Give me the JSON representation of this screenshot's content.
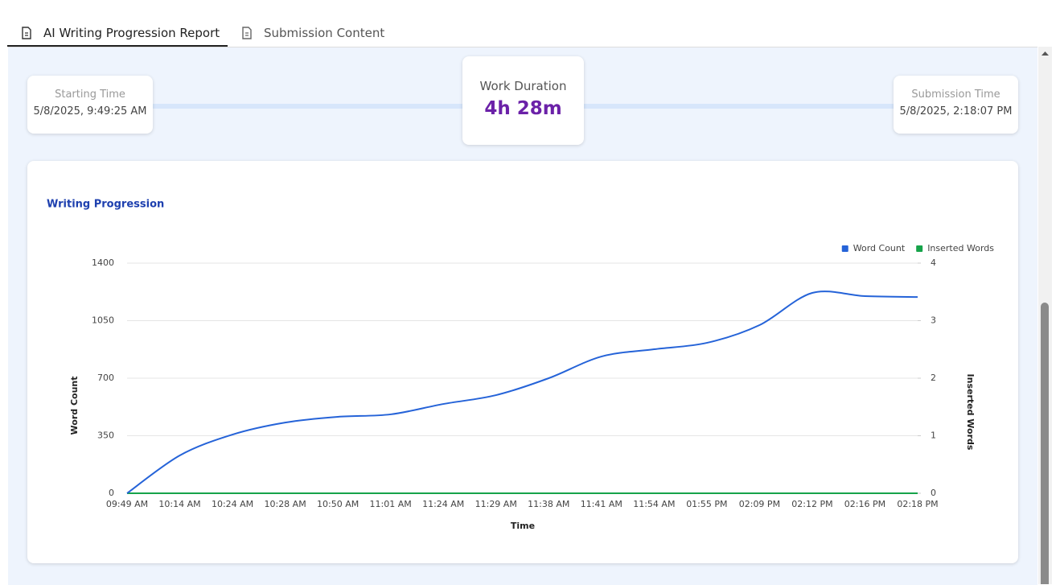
{
  "tabs": [
    {
      "label": "AI Writing Progression Report"
    },
    {
      "label": "Submission Content"
    }
  ],
  "timeline": {
    "start": {
      "label": "Starting Time",
      "value": "5/8/2025, 9:49:25 AM"
    },
    "duration": {
      "label": "Work Duration",
      "value": "4h 28m"
    },
    "end": {
      "label": "Submission Time",
      "value": "5/8/2025, 2:18:07 PM"
    }
  },
  "chart_data": {
    "type": "line",
    "title": "Writing Progression",
    "x_label": "Time",
    "y_label": "Word Count",
    "y2_label": "Inserted Words",
    "categories": [
      "09:49 AM",
      "10:14 AM",
      "10:24 AM",
      "10:28 AM",
      "10:50 AM",
      "11:01 AM",
      "11:24 AM",
      "11:29 AM",
      "11:38 AM",
      "11:41 AM",
      "11:54 AM",
      "01:55 PM",
      "02:09 PM",
      "02:12 PM",
      "02:16 PM",
      "02:18 PM"
    ],
    "series": [
      {
        "name": "Word Count",
        "color": "#2563d8",
        "values": [
          0,
          230,
          357,
          430,
          465,
          480,
          543,
          597,
          700,
          832,
          876,
          915,
          1023,
          1219,
          1199,
          1194
        ]
      },
      {
        "name": "Inserted Words",
        "color": "#16a34a",
        "axis": "y2",
        "values": [
          0,
          0,
          0,
          0,
          0,
          0,
          0,
          0,
          0,
          0,
          0,
          0,
          0,
          0,
          0,
          0
        ]
      }
    ],
    "ylim": [
      0,
      1400
    ],
    "yticks": [
      0,
      350,
      700,
      1050,
      1400
    ],
    "y2lim": [
      0,
      4
    ],
    "y2ticks": [
      0,
      1,
      2,
      3,
      4
    ],
    "grid": true,
    "legend": "top-right"
  }
}
